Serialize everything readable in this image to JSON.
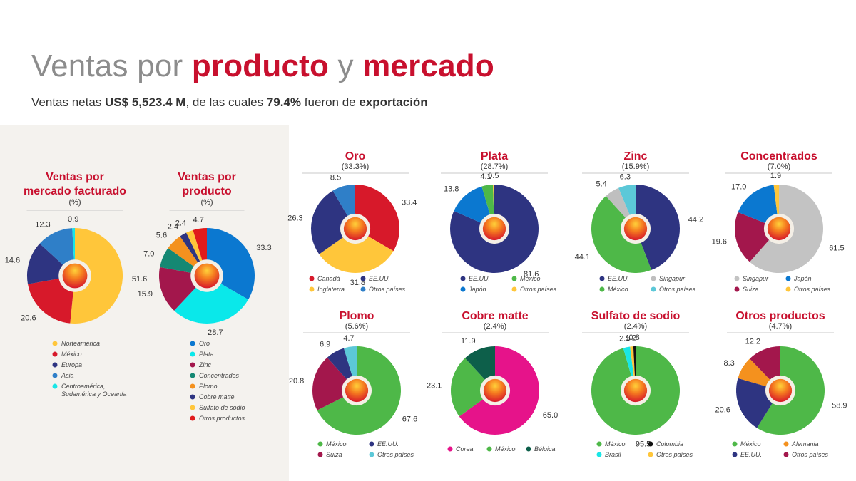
{
  "header": {
    "title_p1": "Ventas por ",
    "title_p2": "producto",
    "title_p3": " y ",
    "title_p4": "mercado",
    "sub_p1": "Ventas netas ",
    "sub_p2": "US$ 5,523.4 M",
    "sub_p3": ", de las cuales ",
    "sub_p4": "79.4%",
    "sub_p5": " fueron de ",
    "sub_p6": "exportación"
  },
  "chart_data": [
    {
      "type": "pie",
      "id": "mercado",
      "title": [
        "Ventas por",
        "mercado facturado"
      ],
      "subtitle": "(%)",
      "slices": [
        {
          "label": "Norteamérica",
          "value": 51.6,
          "color": "#ffc63a"
        },
        {
          "label": "México",
          "value": 20.6,
          "color": "#d7192a"
        },
        {
          "label": "Europa",
          "value": 14.6,
          "color": "#2e3481"
        },
        {
          "label": "Asia",
          "value": 12.3,
          "color": "#2f7fc8"
        },
        {
          "label": "Centroamérica,\nSudamérica y Oceanía",
          "value": 0.9,
          "color": "#19e6e6"
        }
      ],
      "legend_layout": "column"
    },
    {
      "type": "pie",
      "id": "producto",
      "title": [
        "Ventas por",
        "producto"
      ],
      "subtitle": "(%)",
      "slices": [
        {
          "label": "Oro",
          "value": 33.3,
          "color": "#0b78d0"
        },
        {
          "label": "Plata",
          "value": 28.7,
          "color": "#0ae8ea"
        },
        {
          "label": "Zinc",
          "value": 15.9,
          "color": "#a3174c"
        },
        {
          "label": "Concentrados",
          "value": 7.0,
          "color": "#158873"
        },
        {
          "label": "Plomo",
          "value": 5.6,
          "color": "#f4911e"
        },
        {
          "label": "Cobre matte",
          "value": 2.4,
          "color": "#2e3481"
        },
        {
          "label": "Sulfato de sodio",
          "value": 2.4,
          "color": "#ffc63a"
        },
        {
          "label": "Otros productos",
          "value": 4.7,
          "color": "#e01b1b"
        }
      ],
      "legend_layout": "column"
    },
    {
      "type": "pie",
      "id": "oro",
      "title": [
        "Oro"
      ],
      "subtitle": "(33.3%)",
      "slices": [
        {
          "label": "Canadá",
          "value": 33.4,
          "color": "#d7192a"
        },
        {
          "label": "Inglaterra",
          "value": 31.8,
          "color": "#ffc63a"
        },
        {
          "label": "EE.UU.",
          "value": 26.3,
          "color": "#2e3481"
        },
        {
          "label": "Otros países",
          "value": 8.5,
          "color": "#2f7fc8"
        }
      ],
      "legend_order": [
        "Canadá",
        "EE.UU.",
        "Inglaterra",
        "Otros países"
      ]
    },
    {
      "type": "pie",
      "id": "plata",
      "title": [
        "Plata"
      ],
      "subtitle": "(28.7%)",
      "slices": [
        {
          "label": "EE.UU.",
          "value": 81.6,
          "color": "#2e3481"
        },
        {
          "label": "Japón",
          "value": 13.8,
          "color": "#0b78d0"
        },
        {
          "label": "México",
          "value": 4.1,
          "color": "#4eb848"
        },
        {
          "label": "Otros países",
          "value": 0.5,
          "color": "#ffc63a"
        }
      ],
      "legend_order": [
        "EE.UU.",
        "México",
        "Japón",
        "Otros países"
      ]
    },
    {
      "type": "pie",
      "id": "zinc",
      "title": [
        "Zinc"
      ],
      "subtitle": "(15.9%)",
      "slices": [
        {
          "label": "EE.UU.",
          "value": 44.2,
          "color": "#2e3481"
        },
        {
          "label": "México",
          "value": 44.1,
          "color": "#4eb848"
        },
        {
          "label": "Singapur",
          "value": 5.4,
          "color": "#bfbfbf"
        },
        {
          "label": "Otros países",
          "value": 6.3,
          "color": "#5cc8d8"
        }
      ],
      "legend_order": [
        "EE.UU.",
        "Singapur",
        "México",
        "Otros países"
      ]
    },
    {
      "type": "pie",
      "id": "concentrados",
      "title": [
        "Concentrados"
      ],
      "subtitle": "(7.0%)",
      "slices": [
        {
          "label": "Singapur",
          "value": 61.5,
          "color": "#c3c3c3"
        },
        {
          "label": "Suiza",
          "value": 19.6,
          "color": "#a3174c"
        },
        {
          "label": "Japón",
          "value": 17.0,
          "color": "#0b78d0"
        },
        {
          "label": "Otros países",
          "value": 1.9,
          "color": "#ffc63a"
        }
      ],
      "legend_order": [
        "Singapur",
        "Japón",
        "Suiza",
        "Otros países"
      ]
    },
    {
      "type": "pie",
      "id": "plomo",
      "title": [
        "Plomo"
      ],
      "subtitle": "(5.6%)",
      "slices": [
        {
          "label": "México",
          "value": 67.6,
          "color": "#4eb848"
        },
        {
          "label": "Suiza",
          "value": 20.8,
          "color": "#a3174c"
        },
        {
          "label": "EE.UU.",
          "value": 6.9,
          "color": "#2e3481"
        },
        {
          "label": "Otros países",
          "value": 4.7,
          "color": "#5cc8d8"
        }
      ],
      "legend_order": [
        "México",
        "EE.UU.",
        "Suiza",
        "Otros países"
      ]
    },
    {
      "type": "pie",
      "id": "cobre",
      "title": [
        "Cobre matte"
      ],
      "subtitle": "(2.4%)",
      "slices": [
        {
          "label": "Corea",
          "value": 65.0,
          "color": "#e6138a"
        },
        {
          "label": "México",
          "value": 23.1,
          "color": "#4eb848"
        },
        {
          "label": "Bélgica",
          "value": 11.9,
          "color": "#0d5f4a"
        }
      ],
      "legend_order": [
        "Corea",
        "México",
        "Bélgica"
      ],
      "legend_layout": "row"
    },
    {
      "type": "pie",
      "id": "sulfato",
      "title": [
        "Sulfato de sodio"
      ],
      "subtitle": "(2.4%)",
      "slices": [
        {
          "label": "México",
          "value": 95.5,
          "color": "#4eb848"
        },
        {
          "label": "Brasil",
          "value": 2.5,
          "color": "#19e6e6"
        },
        {
          "label": "Otros países",
          "value": 1.2,
          "color": "#ffc63a"
        },
        {
          "label": "Colombia",
          "value": 0.8,
          "color": "#111111"
        }
      ],
      "legend_order": [
        "México",
        "Colombia",
        "Brasil",
        "Otros países"
      ]
    },
    {
      "type": "pie",
      "id": "otros",
      "title": [
        "Otros productos"
      ],
      "subtitle": "(4.7%)",
      "slices": [
        {
          "label": "México",
          "value": 58.9,
          "color": "#4eb848"
        },
        {
          "label": "EE.UU.",
          "value": 20.6,
          "color": "#2e3481"
        },
        {
          "label": "Alemania",
          "value": 8.3,
          "color": "#f4911e"
        },
        {
          "label": "Otros países",
          "value": 12.2,
          "color": "#a3174c"
        }
      ],
      "legend_order": [
        "México",
        "Alemania",
        "EE.UU.",
        "Otros países"
      ]
    }
  ]
}
